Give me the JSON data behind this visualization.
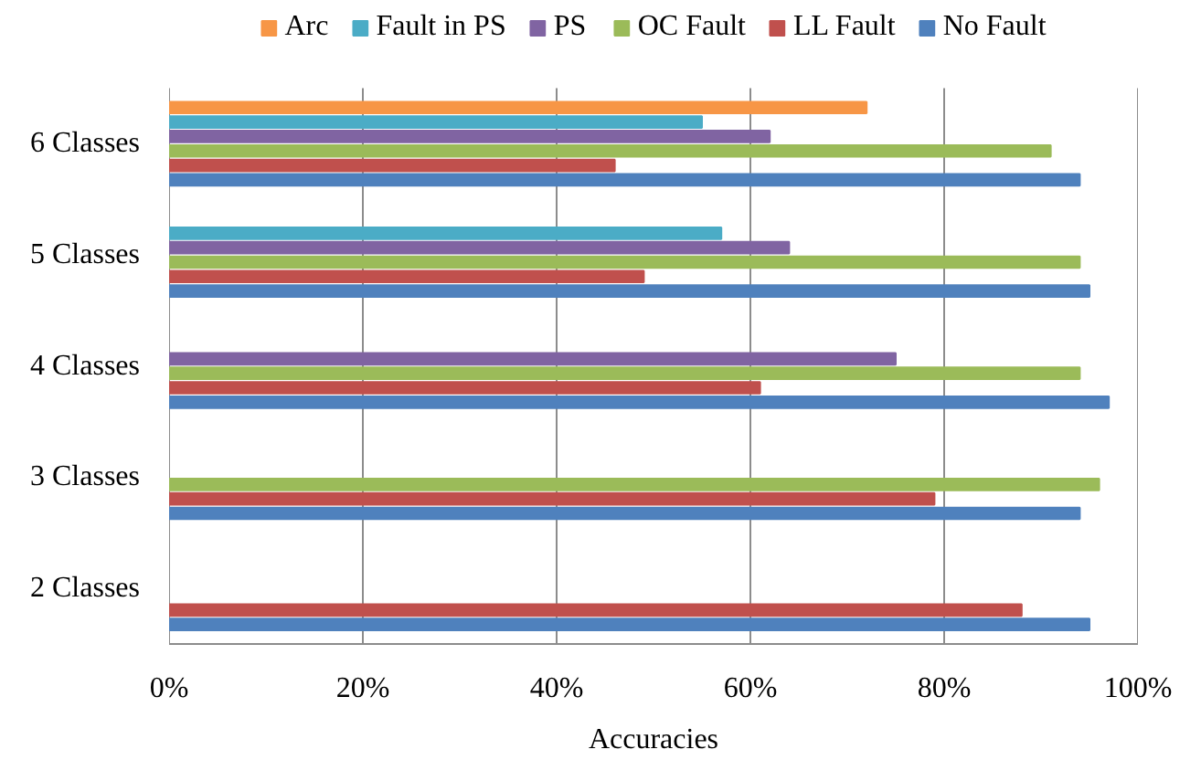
{
  "chart_data": {
    "type": "bar",
    "orientation": "horizontal",
    "xlabel": "Accuracies",
    "categories": [
      "6 Classes",
      "5 Classes",
      "4 Classes",
      "3 Classes",
      "2 Classes"
    ],
    "series": [
      {
        "name": "Arc",
        "color": "#f79646",
        "values": [
          72,
          null,
          null,
          null,
          null
        ]
      },
      {
        "name": "Fault in PS",
        "color": "#4bacc6",
        "values": [
          55,
          57,
          null,
          null,
          null
        ]
      },
      {
        "name": "PS",
        "color": "#8064a2",
        "values": [
          62,
          64,
          75,
          null,
          null
        ]
      },
      {
        "name": "OC Fault",
        "color": "#9bbb59",
        "values": [
          91,
          94,
          94,
          96,
          null
        ]
      },
      {
        "name": "LL Fault",
        "color": "#c0504d",
        "values": [
          46,
          49,
          61,
          79,
          88
        ]
      },
      {
        "name": "No Fault",
        "color": "#4f81bd",
        "values": [
          94,
          95,
          97,
          94,
          95
        ]
      }
    ],
    "xlim": [
      0,
      100
    ],
    "xticks": [
      {
        "value": 0,
        "label": "0%"
      },
      {
        "value": 20,
        "label": "20%"
      },
      {
        "value": 40,
        "label": "40%"
      },
      {
        "value": 60,
        "label": "60%"
      },
      {
        "value": 80,
        "label": "80%"
      },
      {
        "value": 100,
        "label": "100%"
      }
    ],
    "grid": "x",
    "legend": "top"
  }
}
